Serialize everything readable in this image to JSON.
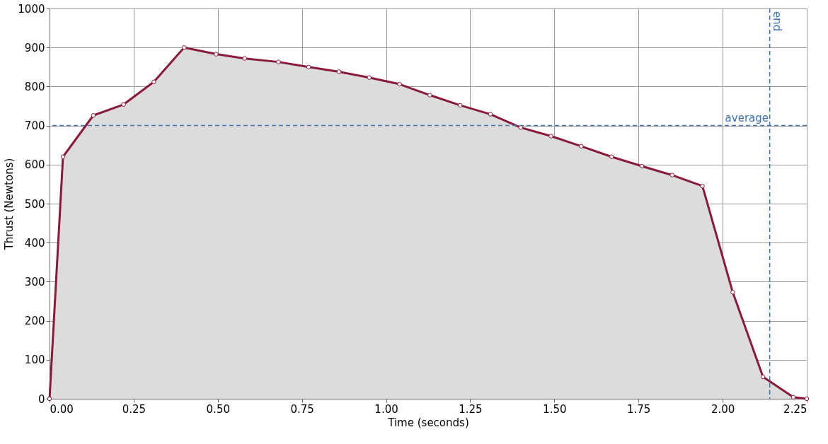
{
  "chart_data": {
    "type": "area",
    "xlabel": "Time (seconds)",
    "ylabel": "Thrust (Newtons)",
    "x": [
      0,
      0.04,
      0.13,
      0.22,
      0.31,
      0.4,
      0.495,
      0.58,
      0.68,
      0.77,
      0.86,
      0.95,
      1.04,
      1.13,
      1.22,
      1.31,
      1.4,
      1.49,
      1.58,
      1.67,
      1.76,
      1.85,
      1.94,
      2.03,
      2.12,
      2.21,
      2.25
    ],
    "series": [
      {
        "color": "#8b1a3a",
        "values": [
          0,
          620,
          726,
          754,
          812,
          900,
          883,
          872,
          863,
          850,
          838,
          823,
          806,
          778,
          752,
          729,
          695,
          673,
          647,
          620,
          596,
          573,
          545,
          273,
          56,
          4,
          0
        ]
      }
    ],
    "xlim": [
      0,
      2.25
    ],
    "ylim": [
      0,
      1000
    ],
    "xticks": [
      {
        "value": 0,
        "label": "0.00"
      },
      {
        "value": 0.25,
        "label": "0.25"
      },
      {
        "value": 0.5,
        "label": "0.50"
      },
      {
        "value": 0.75,
        "label": "0.75"
      },
      {
        "value": 1,
        "label": "1.00"
      },
      {
        "value": 1.25,
        "label": "1.25"
      },
      {
        "value": 1.5,
        "label": "1.50"
      },
      {
        "value": 1.75,
        "label": "1.75"
      },
      {
        "value": 2,
        "label": "2.00"
      },
      {
        "value": 2.25,
        "label": "2.25"
      }
    ],
    "yticks": [
      0,
      100,
      200,
      300,
      400,
      500,
      600,
      700,
      800,
      900,
      1000
    ],
    "ref_lines": [
      {
        "axis": "y",
        "value": 700,
        "label": "average",
        "color": "#3a72b5",
        "line_style": "dashed"
      },
      {
        "axis": "x",
        "value": 2.14,
        "label": "end",
        "color": "#3a72b5",
        "line_style": "dashed"
      }
    ],
    "grid": true,
    "marker": "circle",
    "line_style": "solid"
  }
}
